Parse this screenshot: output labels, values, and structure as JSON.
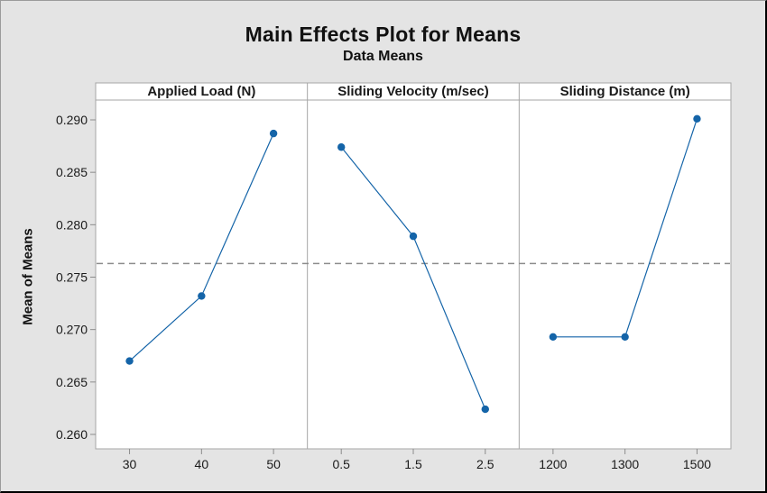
{
  "figure": {
    "title": "Main Effects Plot for Means",
    "subtitle": "Data Means",
    "y_axis_label": "Mean of Means"
  },
  "colors": {
    "background": "#e4e4e4",
    "plot_background": "#ffffff",
    "panel_border": "#a6a6a6",
    "tick_mark": "#8c8c8c",
    "mean_reference_line": "#8c8c8c",
    "series_line": "#1464a8",
    "marker_fill": "#1464a8",
    "text": "#1a1a1a"
  },
  "chart_data": {
    "type": "line",
    "title": "Main Effects Plot for Means",
    "subtitle": "Data Means",
    "ylabel": "Mean of Means",
    "ylim": [
      0.26,
      0.29
    ],
    "y_ticks": [
      "0.290",
      "0.285",
      "0.280",
      "0.275",
      "0.270",
      "0.265",
      "0.260"
    ],
    "grid": false,
    "legend": false,
    "grand_mean": 0.2763,
    "grand_mean_style": "dashed",
    "panels": [
      {
        "label": "Applied Load (N)",
        "categories": [
          "30",
          "40",
          "50"
        ],
        "values": [
          0.267,
          0.2732,
          0.2887
        ]
      },
      {
        "label": "Sliding Velocity (m/sec)",
        "categories": [
          "0.5",
          "1.5",
          "2.5"
        ],
        "values": [
          0.2874,
          0.2789,
          0.2624
        ]
      },
      {
        "label": "Sliding Distance (m)",
        "categories": [
          "1200",
          "1300",
          "1500"
        ],
        "values": [
          0.2693,
          0.2693,
          0.2901
        ]
      }
    ]
  }
}
